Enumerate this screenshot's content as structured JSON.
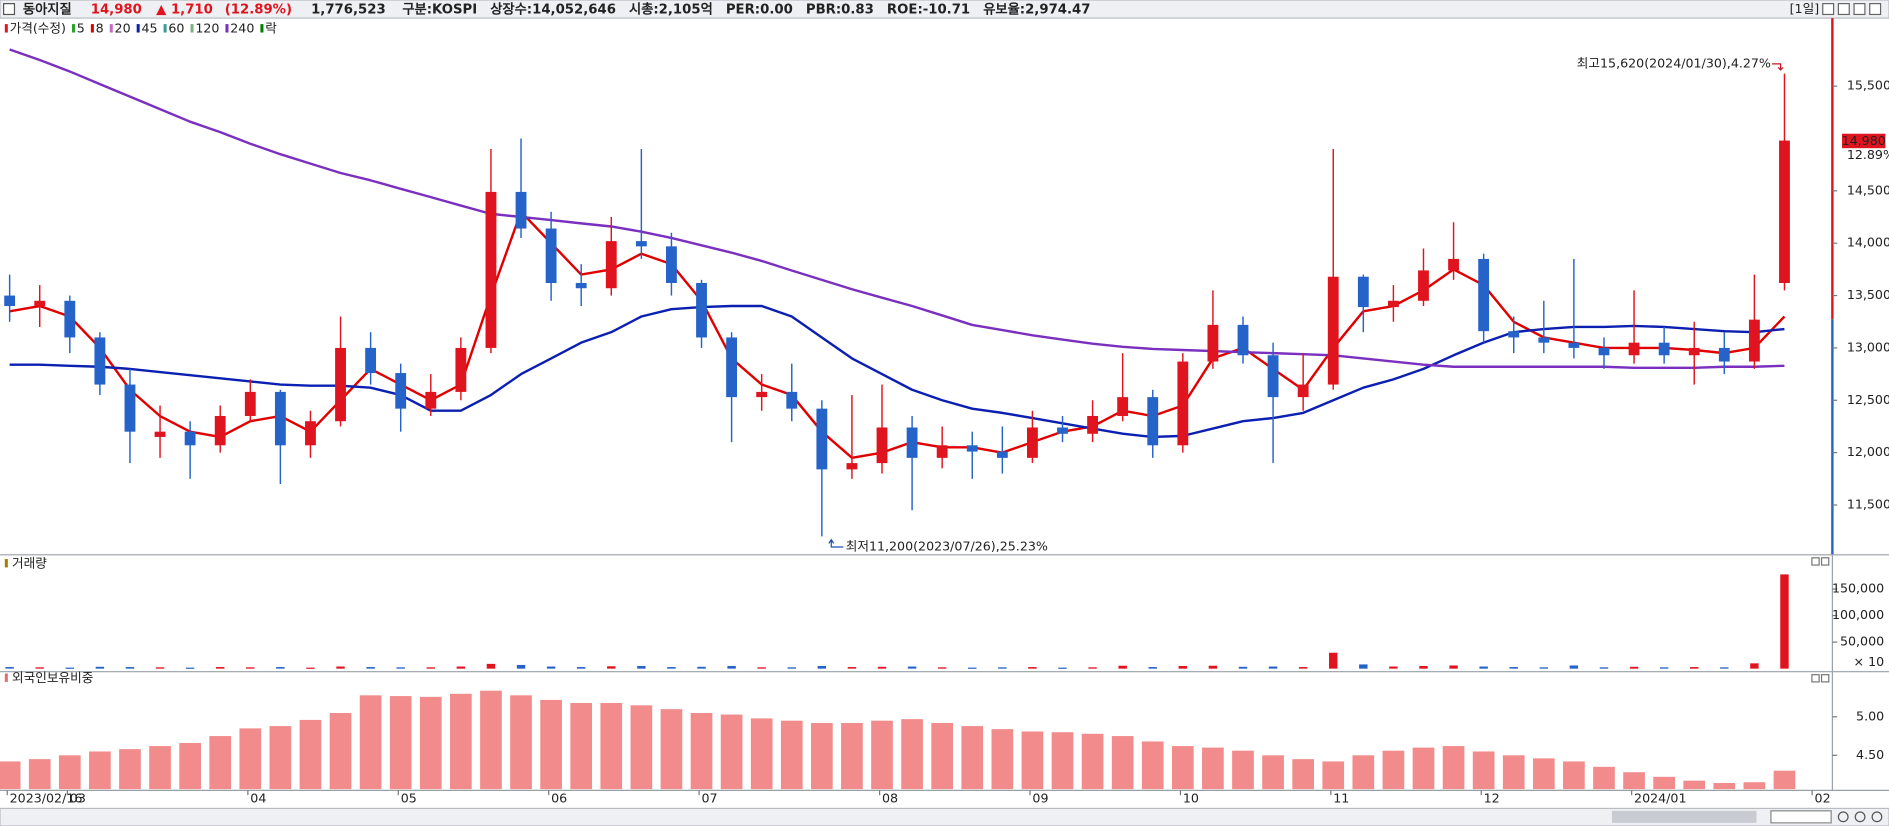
{
  "header": {
    "name": "동아지질",
    "price": "14,980",
    "change": "▲ 1,710",
    "change_pct": "(12.89%)",
    "volume": "1,776,523",
    "info": [
      "구분:KOSPI",
      "상장수:14,052,646",
      "시총:2,105억",
      "PER:0.00",
      "PBR:0.83",
      "ROE:-10.71",
      "유보율:2,974.47"
    ],
    "period": "[1일]"
  },
  "chart_data": [
    {
      "type": "candlestick",
      "price_label": "가격(수정)",
      "ex_rights_label": "락",
      "up_color": "#e0141e",
      "down_color": "#2563c9",
      "categories": [
        "2023/02/16",
        null,
        "03",
        null,
        null,
        null,
        null,
        null,
        "04",
        null,
        null,
        null,
        null,
        "05",
        null,
        null,
        null,
        null,
        "06",
        null,
        null,
        null,
        null,
        "07",
        null,
        null,
        null,
        null,
        null,
        "08",
        null,
        null,
        null,
        null,
        "09",
        null,
        null,
        null,
        null,
        "10",
        null,
        null,
        null,
        null,
        "11",
        null,
        null,
        null,
        null,
        "12",
        null,
        null,
        null,
        null,
        "2024/01",
        null,
        null,
        null,
        null,
        null,
        "02"
      ],
      "candles": [
        [
          13500,
          13700,
          13250,
          13400
        ],
        [
          13400,
          13600,
          13200,
          13450
        ],
        [
          13450,
          13500,
          12950,
          13100
        ],
        [
          13100,
          13150,
          12550,
          12650
        ],
        [
          12650,
          12800,
          11900,
          12200
        ],
        [
          12150,
          12450,
          11950,
          12200
        ],
        [
          12200,
          12300,
          11750,
          12070
        ],
        [
          12070,
          12450,
          12000,
          12350
        ],
        [
          12350,
          12700,
          12300,
          12580
        ],
        [
          12580,
          12600,
          11700,
          12070
        ],
        [
          12070,
          12400,
          11950,
          12300
        ],
        [
          12300,
          13300,
          12250,
          13000
        ],
        [
          13000,
          13150,
          12650,
          12760
        ],
        [
          12760,
          12850,
          12200,
          12420
        ],
        [
          12420,
          12750,
          12350,
          12580
        ],
        [
          12580,
          13100,
          12500,
          13000
        ],
        [
          13000,
          14900,
          12950,
          14490
        ],
        [
          14490,
          15000,
          14050,
          14140
        ],
        [
          14140,
          14300,
          13450,
          13620
        ],
        [
          13620,
          13800,
          13400,
          13570
        ],
        [
          13570,
          14250,
          13500,
          14020
        ],
        [
          14020,
          14900,
          13850,
          13970
        ],
        [
          13970,
          14100,
          13500,
          13620
        ],
        [
          13620,
          13650,
          13000,
          13100
        ],
        [
          13100,
          13150,
          12100,
          12530
        ],
        [
          12530,
          12750,
          12400,
          12580
        ],
        [
          12580,
          12850,
          12300,
          12420
        ],
        [
          12420,
          12500,
          11200,
          11840
        ],
        [
          11840,
          12550,
          11750,
          11900
        ],
        [
          11900,
          12650,
          11800,
          12240
        ],
        [
          12240,
          12350,
          11450,
          11950
        ],
        [
          11950,
          12250,
          11850,
          12070
        ],
        [
          12070,
          12200,
          11750,
          12010
        ],
        [
          12010,
          12250,
          11800,
          11950
        ],
        [
          11950,
          12400,
          11900,
          12240
        ],
        [
          12240,
          12350,
          12100,
          12180
        ],
        [
          12180,
          12500,
          12100,
          12350
        ],
        [
          12350,
          12950,
          12300,
          12530
        ],
        [
          12530,
          12600,
          11950,
          12070
        ],
        [
          12070,
          12950,
          12000,
          12870
        ],
        [
          12870,
          13550,
          12800,
          13220
        ],
        [
          13220,
          13300,
          12850,
          12930
        ],
        [
          12930,
          13050,
          11900,
          12530
        ],
        [
          12530,
          12950,
          12400,
          12650
        ],
        [
          12650,
          14900,
          12600,
          13680
        ],
        [
          13680,
          13700,
          13150,
          13390
        ],
        [
          13390,
          13600,
          13250,
          13450
        ],
        [
          13450,
          13950,
          13400,
          13740
        ],
        [
          13740,
          14200,
          13650,
          13850
        ],
        [
          13850,
          13900,
          13050,
          13160
        ],
        [
          13160,
          13300,
          12950,
          13100
        ],
        [
          13100,
          13450,
          12950,
          13050
        ],
        [
          13050,
          13850,
          12900,
          13000
        ],
        [
          13000,
          13100,
          12800,
          12930
        ],
        [
          12930,
          13550,
          12850,
          13050
        ],
        [
          13050,
          13200,
          12850,
          12930
        ],
        [
          12930,
          13250,
          12650,
          13000
        ],
        [
          13000,
          13150,
          12750,
          12870
        ],
        [
          12870,
          13700,
          12800,
          13270
        ],
        [
          13620,
          15620,
          13550,
          14980
        ],
        null
      ],
      "series": [
        {
          "name": "5",
          "color": "#2ca02c"
        },
        {
          "name": "8",
          "color": "#e00000",
          "values": [
            13350,
            13400,
            13300,
            13000,
            12600,
            12350,
            12200,
            12150,
            12300,
            12350,
            12200,
            12500,
            12800,
            12650,
            12500,
            12650,
            13500,
            14300,
            14000,
            13700,
            13750,
            13900,
            13800,
            13450,
            12900,
            12650,
            12550,
            12200,
            11950,
            12000,
            12100,
            12050,
            12050,
            12000,
            12100,
            12200,
            12250,
            12400,
            12350,
            12450,
            12900,
            13000,
            12800,
            12600,
            13000,
            13350,
            13400,
            13550,
            13750,
            13600,
            13250,
            13100,
            13050,
            13000,
            13000,
            13000,
            12980,
            12950,
            13000,
            13300,
            null
          ]
        },
        {
          "name": "20",
          "color": "#c46cc4"
        },
        {
          "name": "45",
          "color": "#0b1fb0",
          "values": [
            12840,
            12840,
            12830,
            12820,
            12800,
            12770,
            12740,
            12710,
            12680,
            12650,
            12640,
            12640,
            12620,
            12550,
            12400,
            12400,
            12550,
            12750,
            12900,
            13050,
            13150,
            13300,
            13370,
            13390,
            13400,
            13400,
            13300,
            13100,
            12900,
            12750,
            12600,
            12500,
            12420,
            12380,
            12330,
            12280,
            12230,
            12180,
            12150,
            12160,
            12230,
            12300,
            12330,
            12380,
            12500,
            12620,
            12700,
            12800,
            12930,
            13050,
            13150,
            13180,
            13200,
            13200,
            13210,
            13200,
            13180,
            13160,
            13150,
            13180,
            null
          ]
        },
        {
          "name": "60",
          "color": "#3a9a9a"
        },
        {
          "name": "120",
          "color": "#7fae7f"
        },
        {
          "name": "240",
          "color": "#7a2fbe",
          "values": [
            15850,
            15750,
            15640,
            15520,
            15400,
            15280,
            15160,
            15060,
            14950,
            14850,
            14760,
            14670,
            14600,
            14520,
            14440,
            14360,
            14280,
            14250,
            14220,
            14190,
            14160,
            14110,
            14050,
            13980,
            13910,
            13830,
            13740,
            13650,
            13560,
            13480,
            13400,
            13310,
            13220,
            13170,
            13120,
            13080,
            13040,
            13010,
            12990,
            12980,
            12970,
            12960,
            12950,
            12940,
            12930,
            12900,
            12870,
            12840,
            12820,
            12820,
            12820,
            12820,
            12820,
            12820,
            12810,
            12810,
            12810,
            12820,
            12820,
            12830,
            null
          ]
        }
      ],
      "ylim": [
        11030,
        16150
      ],
      "yticks": [
        {
          "value": 11500,
          "label": "11,500"
        },
        {
          "value": 12000,
          "label": "12,000"
        },
        {
          "value": 12500,
          "label": "12,500"
        },
        {
          "value": 13000,
          "label": "13,000"
        },
        {
          "value": 13500,
          "label": "13,500"
        },
        {
          "value": 14000,
          "label": "14,000"
        },
        {
          "value": 14500,
          "label": "14,500"
        },
        {
          "value": 15500,
          "label": "15,500"
        }
      ],
      "grid": false,
      "annotations": {
        "high": "최고15,620(2024/01/30),4.27%",
        "low": "최저11,200(2023/07/26),25.23%"
      },
      "price_tag": {
        "price": "14,980",
        "change_pct": "12.89%"
      }
    },
    {
      "type": "bar",
      "title": "거래량",
      "unit_label": "× 10",
      "values": [
        3000,
        2500,
        2000,
        3500,
        3000,
        2500,
        2000,
        3000,
        2500,
        3000,
        2000,
        4000,
        3000,
        2500,
        2500,
        4000,
        9000,
        7000,
        4000,
        3000,
        4500,
        5000,
        3000,
        3500,
        5000,
        2500,
        2500,
        5000,
        3000,
        3500,
        4000,
        2500,
        2000,
        2500,
        3000,
        2000,
        2500,
        5500,
        3000,
        5000,
        5500,
        3500,
        4000,
        3000,
        30000,
        8000,
        4000,
        5000,
        6000,
        4000,
        3000,
        2500,
        6000,
        2500,
        3500,
        2500,
        3000,
        2500,
        10000,
        177652,
        null
      ],
      "ylim": [
        0,
        193000
      ],
      "yticks": [
        {
          "value": 50000,
          "label": "50,000"
        },
        {
          "value": 100000,
          "label": "100,000"
        },
        {
          "value": 150000,
          "label": "150,000"
        }
      ]
    },
    {
      "type": "bar",
      "title": "외국인보유비중",
      "color": "#f28b8b",
      "values": [
        4.42,
        4.45,
        4.5,
        4.55,
        4.58,
        4.62,
        4.66,
        4.75,
        4.85,
        4.88,
        4.96,
        5.05,
        5.28,
        5.27,
        5.26,
        5.3,
        5.34,
        5.28,
        5.22,
        5.18,
        5.18,
        5.15,
        5.1,
        5.05,
        5.03,
        4.98,
        4.95,
        4.92,
        4.92,
        4.95,
        4.97,
        4.92,
        4.88,
        4.84,
        4.81,
        4.8,
        4.78,
        4.75,
        4.68,
        4.62,
        4.6,
        4.56,
        4.5,
        4.45,
        4.42,
        4.5,
        4.56,
        4.6,
        4.62,
        4.55,
        4.5,
        4.46,
        4.42,
        4.35,
        4.28,
        4.22,
        4.17,
        4.14,
        4.15,
        4.3,
        null
      ],
      "ylim": [
        4.06,
        5.47
      ],
      "yticks": [
        {
          "value": 4.5,
          "label": "4.50"
        },
        {
          "value": 5,
          "label": "5.00"
        }
      ]
    }
  ]
}
